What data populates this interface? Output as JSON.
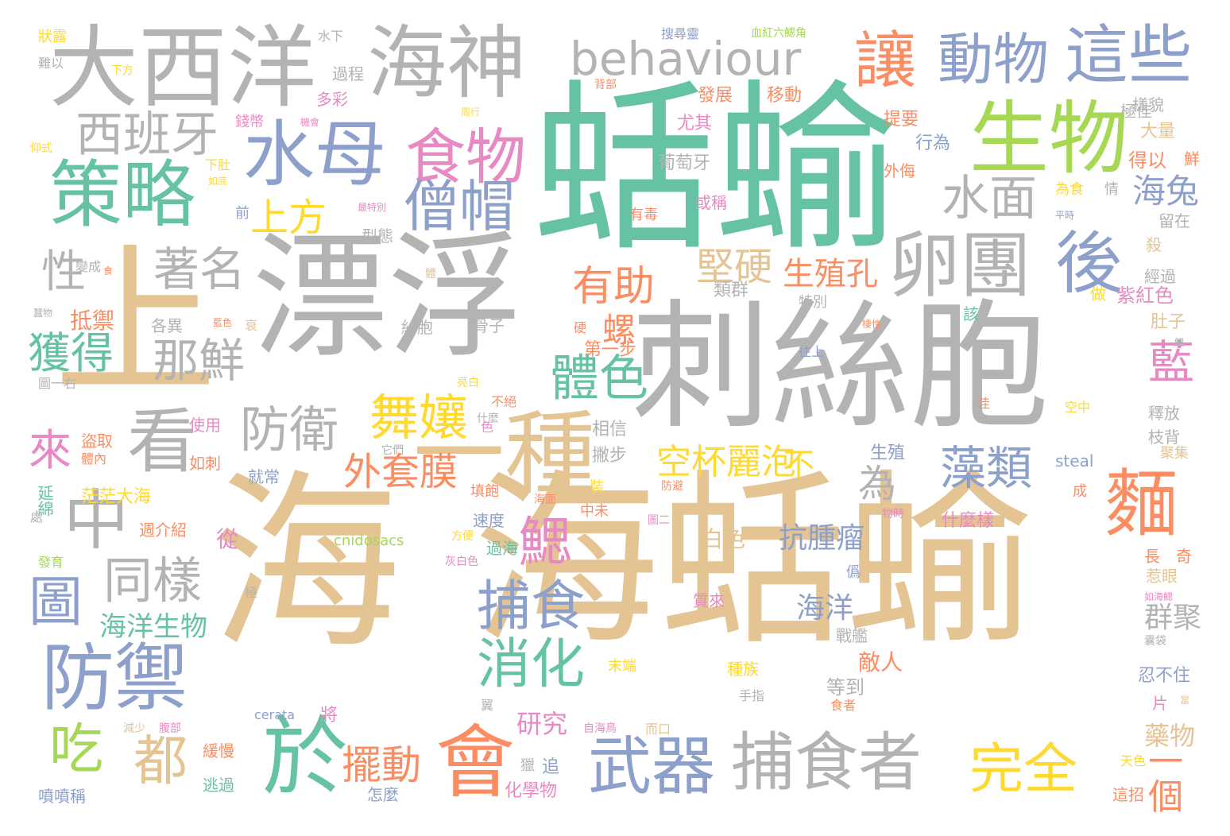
{
  "palette": {
    "teal": "#66c2a5",
    "orange": "#fc8d62",
    "blue": "#8da0cb",
    "pink": "#e78ac3",
    "green": "#a6d854",
    "yellow": "#ffd92f",
    "tan": "#e5c494",
    "gray": "#b3b3b3"
  },
  "words": [
    "海蛞蝓",
    "蛞蝓",
    "刺絲胞",
    "漂浮",
    "上",
    "海",
    "一種",
    "大西洋",
    "海神",
    "behaviour",
    "讓",
    "動物",
    "這些",
    "生物",
    "策略",
    "水母",
    "食物",
    "僧帽",
    "卵團",
    "後",
    "水面",
    "西班牙",
    "上方",
    "著名",
    "性",
    "那鮮",
    "獲得",
    "抵禦",
    "有助",
    "堅硬",
    "生殖孔",
    "看",
    "防衛",
    "海兔",
    "螺",
    "藍",
    "體色",
    "舞孃",
    "中",
    "來",
    "外套膜",
    "空杯麗泡",
    "不",
    "為",
    "藻類",
    "麵",
    "鰓",
    "同樣",
    "圖",
    "捕食",
    "海洋生物",
    "消化",
    "防禦",
    "於",
    "會",
    "武器",
    "捕食者",
    "吃",
    "都",
    "擺動",
    "完全",
    "一個",
    "群聚",
    "抗腫瘤",
    "海洋",
    "研究",
    "藥物",
    "白色",
    "從",
    "敵人",
    "等到",
    "戰艦",
    "忍不住",
    "類群",
    "第一步",
    "葡萄牙",
    "型態",
    "發展",
    "移動",
    "尤其",
    "提要",
    "行為",
    "得以",
    "鮮",
    "大量",
    "極佳",
    "樣貌",
    "情",
    "為食",
    "留在",
    "殺",
    "經過",
    "紫紅色",
    "做",
    "肚子",
    "該",
    "釋放",
    "枝背",
    "聚集",
    "過程",
    "多彩",
    "錢幣",
    "或稱",
    "前",
    "有毒",
    "外侮",
    "成",
    "steal",
    "生殖",
    "相信",
    "撇步",
    "就常",
    "盜取",
    "使用",
    "如刺",
    "茫茫大海",
    "延綿",
    "週介紹",
    "速度",
    "什麼樣",
    "過海",
    "cnidosacs",
    "灰白色",
    "什麼",
    "中未",
    "裝",
    "長",
    "奇",
    "惹眼",
    "僞",
    "質來",
    "種族",
    "末端",
    "手指",
    "cerata",
    "將",
    "化學物",
    "獵",
    "追",
    "怎麼",
    "逃過",
    "噴噴稱",
    "緩慢",
    "減少",
    "腹部",
    "自海鳥",
    "而口",
    "這招",
    "天色",
    "片",
    "骨子",
    "各異",
    "絲胞",
    "特別",
    "往上",
    "亮白",
    "圖一右",
    "不絕",
    "色",
    "它們",
    "佳",
    "空中",
    "填飽",
    "方便",
    "極",
    "發育",
    "處",
    "海面",
    "圖二",
    "防避",
    "物時",
    "翼",
    "食者",
    "狀露",
    "水下",
    "搜尋靈",
    "血紅六鰓角",
    "難以",
    "下方",
    "仰式",
    "背部",
    "周行",
    "機會",
    "下肚",
    "如底",
    "最特別",
    "變成",
    "藍色",
    "衰",
    "體內",
    "硬",
    "體",
    "棲性",
    "蠶物",
    "食",
    "平時",
    "鯉",
    "如海鰓",
    "囊袋",
    "當"
  ]
}
